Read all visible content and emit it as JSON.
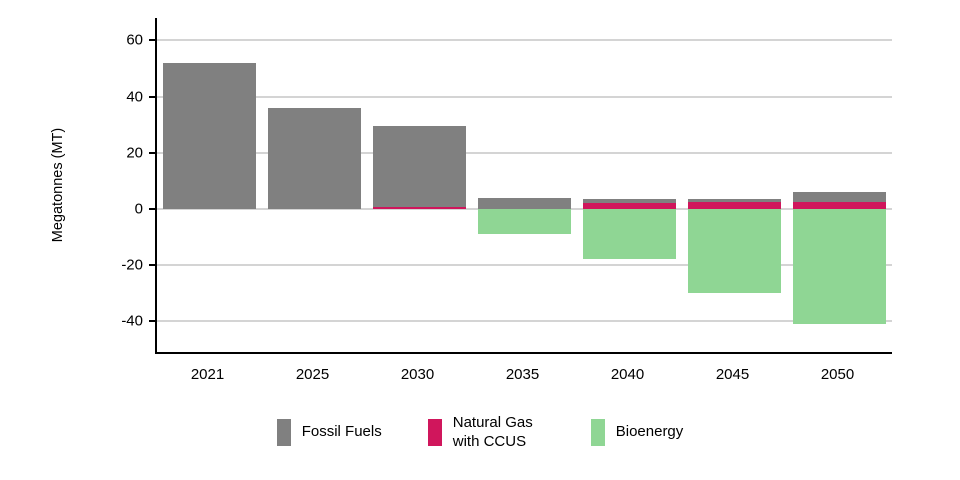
{
  "chart_data": {
    "type": "bar",
    "stacked": true,
    "title": "",
    "ylabel": "Megatonnes (MT)",
    "xlabel": "",
    "categories": [
      "2021",
      "2025",
      "2030",
      "2035",
      "2040",
      "2045",
      "2050"
    ],
    "series": [
      {
        "name": "Fossil Fuels",
        "color": "#808080",
        "values": [
          52,
          36,
          29,
          4,
          1.5,
          1,
          3.5
        ]
      },
      {
        "name": "Natural Gas with CCUS",
        "color": "#d0165c",
        "values": [
          0,
          0,
          0.5,
          0,
          2,
          2.5,
          2.5
        ]
      },
      {
        "name": "Bioenergy",
        "color": "#8fd694",
        "values": [
          0,
          0,
          0,
          -9,
          -18,
          -30,
          -41
        ]
      }
    ],
    "stack_order": [
      "Natural Gas with CCUS",
      "Fossil Fuels",
      "Bioenergy"
    ],
    "ylim": [
      -51,
      68
    ],
    "yticks": [
      60,
      40,
      20,
      0,
      -20,
      -40
    ],
    "grid": true,
    "gridline_color": "#d4d4d4",
    "axis_color": "#000000",
    "legend_position": "bottom"
  }
}
